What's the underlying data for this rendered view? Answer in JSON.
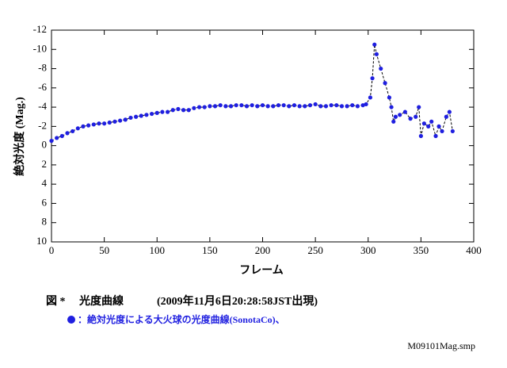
{
  "chart_data": {
    "type": "line",
    "xlabel": "フレーム",
    "ylabel": "絶対光度 (Mag.)",
    "caption_label": "図 *",
    "caption_title": "光度曲線",
    "caption_note": "(2009年11月6日20:28:58JST出現)",
    "filename": "M09101Mag.smp",
    "xlim": [
      0,
      400
    ],
    "xticks": [
      0,
      50,
      100,
      150,
      200,
      250,
      300,
      350,
      400
    ],
    "ylim": [
      10,
      -12
    ],
    "yticks": [
      -12,
      -10,
      -8,
      -6,
      -4,
      -2,
      0,
      2,
      4,
      6,
      8,
      10
    ],
    "series": [
      {
        "name": "：絶対光度による大火球の光度曲線(SonotaCo)、",
        "color": "#1f1fe0",
        "x": [
          0,
          5,
          10,
          15,
          20,
          25,
          30,
          35,
          40,
          45,
          50,
          55,
          60,
          65,
          70,
          75,
          80,
          85,
          90,
          95,
          100,
          105,
          110,
          115,
          120,
          125,
          130,
          135,
          140,
          145,
          150,
          155,
          160,
          165,
          170,
          175,
          180,
          185,
          190,
          195,
          200,
          205,
          210,
          215,
          220,
          225,
          230,
          235,
          240,
          245,
          250,
          255,
          260,
          265,
          270,
          275,
          280,
          285,
          290,
          295,
          298,
          302,
          304,
          306,
          308,
          312,
          316,
          320,
          322,
          324,
          326,
          330,
          335,
          340,
          345,
          348,
          350,
          353,
          357,
          360,
          364,
          367,
          370,
          374,
          377,
          380
        ],
        "values": [
          -0.5,
          -0.8,
          -1.0,
          -1.3,
          -1.5,
          -1.8,
          -2.0,
          -2.1,
          -2.2,
          -2.3,
          -2.3,
          -2.4,
          -2.5,
          -2.6,
          -2.7,
          -2.9,
          -3.0,
          -3.1,
          -3.2,
          -3.3,
          -3.4,
          -3.5,
          -3.5,
          -3.7,
          -3.8,
          -3.7,
          -3.7,
          -3.9,
          -4.0,
          -4.0,
          -4.1,
          -4.1,
          -4.2,
          -4.1,
          -4.1,
          -4.2,
          -4.2,
          -4.1,
          -4.2,
          -4.1,
          -4.2,
          -4.1,
          -4.1,
          -4.2,
          -4.2,
          -4.1,
          -4.2,
          -4.1,
          -4.1,
          -4.2,
          -4.3,
          -4.1,
          -4.1,
          -4.2,
          -4.2,
          -4.1,
          -4.1,
          -4.2,
          -4.1,
          -4.2,
          -4.3,
          -5.0,
          -7.0,
          -10.5,
          -9.5,
          -8.0,
          -6.5,
          -5.0,
          -4.0,
          -2.5,
          -3.0,
          -3.2,
          -3.5,
          -2.8,
          -3.0,
          -4.0,
          -1.0,
          -2.3,
          -2.0,
          -2.5,
          -1.0,
          -2.0,
          -1.5,
          -3.0,
          -3.5,
          -1.5
        ]
      }
    ]
  }
}
